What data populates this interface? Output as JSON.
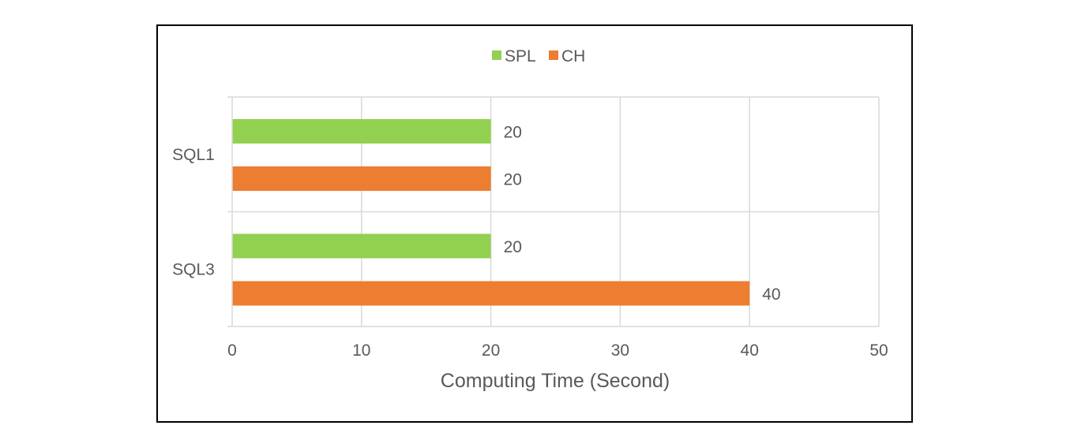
{
  "chart_data": {
    "type": "bar",
    "orientation": "horizontal",
    "title": "",
    "categories": [
      "SQL1",
      "SQL3"
    ],
    "series": [
      {
        "name": "SPL",
        "color": "#92d050",
        "values": [
          20,
          20
        ]
      },
      {
        "name": "CH",
        "color": "#ed7d31",
        "values": [
          20,
          40
        ]
      }
    ],
    "xlabel": "Computing Time (Second)",
    "ylabel": "",
    "xlim": [
      0,
      50
    ],
    "xticks": [
      0,
      10,
      20,
      30,
      40,
      50
    ],
    "data_labels": true,
    "grid": true,
    "legend": "top-center"
  }
}
